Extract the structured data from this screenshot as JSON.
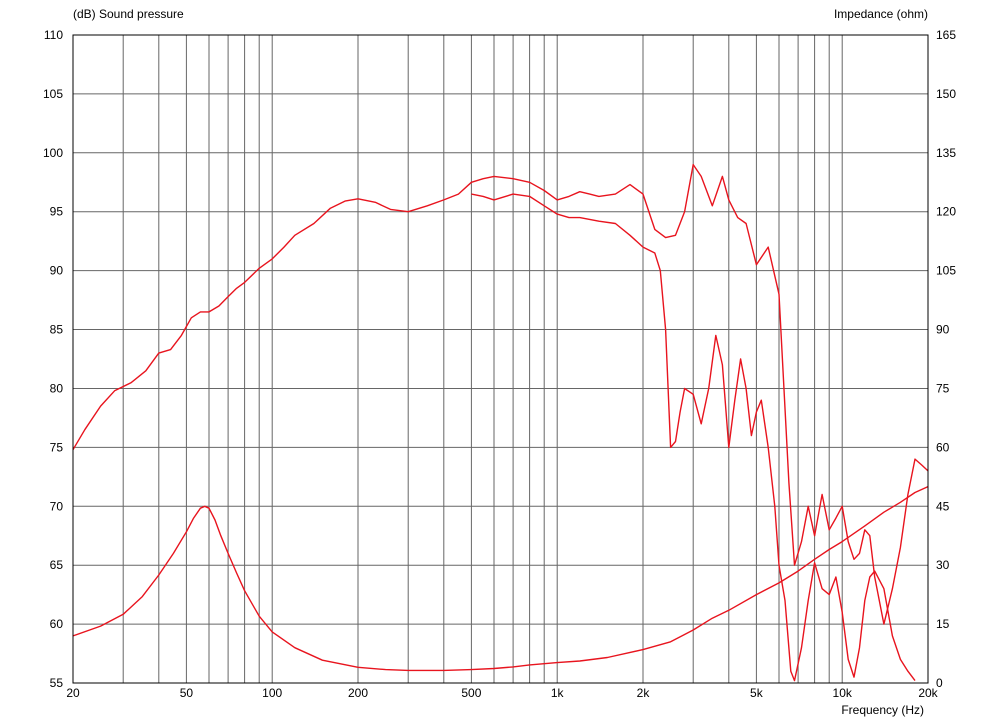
{
  "chart_data": {
    "type": "line",
    "x_scale": "log",
    "xlim": [
      20,
      20000
    ],
    "ylim_left": [
      55,
      110
    ],
    "ylim_right": [
      0,
      165
    ],
    "grid": true,
    "left_axis_title": "(dB)  Sound pressure",
    "right_axis_title": "Impedance  (ohm)",
    "x_axis_title": "Frequency  (Hz)",
    "x_ticks": [
      {
        "value": 20,
        "label": "20"
      },
      {
        "value": 50,
        "label": "50"
      },
      {
        "value": 100,
        "label": "100"
      },
      {
        "value": 200,
        "label": "200"
      },
      {
        "value": 500,
        "label": "500"
      },
      {
        "value": 1000,
        "label": "1k"
      },
      {
        "value": 2000,
        "label": "2k"
      },
      {
        "value": 5000,
        "label": "5k"
      },
      {
        "value": 10000,
        "label": "10k"
      },
      {
        "value": 20000,
        "label": "20k"
      }
    ],
    "left_ticks": [
      {
        "value": 55,
        "label": "55"
      },
      {
        "value": 60,
        "label": "60"
      },
      {
        "value": 65,
        "label": "65"
      },
      {
        "value": 70,
        "label": "70"
      },
      {
        "value": 75,
        "label": "75"
      },
      {
        "value": 80,
        "label": "80"
      },
      {
        "value": 85,
        "label": "85"
      },
      {
        "value": 90,
        "label": "90"
      },
      {
        "value": 95,
        "label": "95"
      },
      {
        "value": 100,
        "label": "100"
      },
      {
        "value": 105,
        "label": "105"
      },
      {
        "value": 110,
        "label": "110"
      }
    ],
    "right_ticks": [
      {
        "value": 0,
        "label": "0"
      },
      {
        "value": 15,
        "label": "15"
      },
      {
        "value": 30,
        "label": "30"
      },
      {
        "value": 45,
        "label": "45"
      },
      {
        "value": 60,
        "label": "60"
      },
      {
        "value": 75,
        "label": "75"
      },
      {
        "value": 90,
        "label": "90"
      },
      {
        "value": 105,
        "label": "105"
      },
      {
        "value": 120,
        "label": "120"
      },
      {
        "value": 135,
        "label": "135"
      },
      {
        "value": 150,
        "label": "150"
      },
      {
        "value": 165,
        "label": "165"
      }
    ],
    "series": [
      {
        "color": "#e8141e",
        "axis": "left",
        "x": [
          20,
          22,
          25,
          28,
          32,
          36,
          40,
          44,
          48,
          52,
          56,
          60,
          65,
          70,
          75,
          80,
          90,
          100,
          110,
          120,
          140,
          160,
          180,
          200,
          230,
          260,
          300,
          350,
          400,
          450,
          500,
          550,
          600,
          700,
          800,
          900,
          1000,
          1100,
          1200,
          1300,
          1400,
          1600,
          1800,
          2000,
          2200,
          2400,
          2600,
          2800,
          3000,
          3200,
          3500,
          3800,
          4000,
          4300,
          4600,
          5000,
          5500,
          6000,
          6500,
          6800,
          7200,
          7600,
          8000,
          8500,
          9000,
          9500,
          10000,
          10500,
          11000,
          11500,
          12000,
          12500,
          13000,
          14000,
          15000,
          16000,
          17000,
          18000,
          19000,
          20000
        ],
        "values": [
          74.8,
          76.5,
          78.5,
          79.8,
          80.5,
          81.5,
          83.0,
          83.3,
          84.5,
          86.0,
          86.5,
          86.5,
          87.0,
          87.8,
          88.5,
          89.0,
          90.2,
          91.0,
          92.0,
          93.0,
          94.0,
          95.3,
          95.9,
          96.1,
          95.8,
          95.2,
          95.0,
          95.5,
          96.0,
          96.5,
          97.5,
          97.8,
          98.0,
          97.8,
          97.5,
          96.8,
          96.0,
          96.3,
          96.7,
          96.5,
          96.3,
          96.5,
          97.3,
          96.5,
          93.5,
          92.8,
          93.0,
          95.0,
          99.0,
          98.0,
          95.5,
          98.0,
          96.0,
          94.5,
          94.0,
          90.5,
          92.0,
          88.0,
          72.0,
          65.0,
          67.0,
          70.0,
          67.5,
          71.0,
          68.0,
          69.0,
          70.0,
          67.0,
          65.5,
          66.0,
          68.0,
          67.5,
          64.0,
          60.0,
          63.0,
          66.5,
          71.0,
          74.0,
          73.5,
          73.0
        ]
      },
      {
        "color": "#e8141e",
        "axis": "left",
        "x": [
          500,
          550,
          600,
          700,
          800,
          900,
          1000,
          1100,
          1200,
          1400,
          1600,
          1800,
          2000,
          2200,
          2300,
          2400,
          2500,
          2600,
          2700,
          2800,
          3000,
          3200,
          3400,
          3600,
          3800,
          4000,
          4200,
          4400,
          4600,
          4800,
          5000,
          5200,
          5500,
          5800,
          6000,
          6300,
          6600,
          6800,
          7200,
          7600,
          8000,
          8500,
          9000,
          9500,
          10000,
          10500,
          11000,
          11500,
          12000,
          12500,
          13000,
          14000,
          15000,
          16000,
          17000,
          18000
        ],
        "values": [
          96.5,
          96.3,
          96.0,
          96.5,
          96.3,
          95.5,
          94.8,
          94.5,
          94.5,
          94.2,
          94.0,
          93.0,
          92.0,
          91.5,
          90.0,
          85.0,
          75.0,
          75.5,
          78.0,
          80.0,
          79.5,
          77.0,
          80.0,
          84.5,
          82.0,
          75.0,
          79.0,
          82.5,
          80.0,
          76.0,
          78.0,
          79.0,
          75.0,
          70.0,
          65.0,
          62.0,
          56.0,
          55.2,
          58.0,
          62.0,
          65.2,
          63.0,
          62.5,
          64.0,
          61.0,
          57.0,
          55.5,
          58.0,
          62.0,
          64.0,
          64.5,
          63.0,
          59.0,
          57.0,
          56.0,
          55.2
        ]
      },
      {
        "color": "#e8141e",
        "axis": "right",
        "x": [
          20,
          25,
          30,
          35,
          40,
          45,
          50,
          53,
          56,
          58,
          60,
          63,
          66,
          70,
          75,
          80,
          90,
          100,
          120,
          150,
          200,
          250,
          300,
          400,
          500,
          600,
          700,
          800,
          1000,
          1200,
          1500,
          2000,
          2500,
          3000,
          3500,
          4000,
          5000,
          6000,
          7000,
          8000,
          9000,
          10000,
          12000,
          14000,
          16000,
          18000,
          20000
        ],
        "values": [
          12.0,
          14.5,
          17.5,
          22.0,
          27.5,
          33.0,
          38.5,
          42.0,
          44.5,
          45.0,
          44.5,
          41.5,
          37.5,
          33.0,
          28.0,
          23.5,
          17.0,
          13.0,
          9.0,
          5.8,
          4.0,
          3.4,
          3.2,
          3.2,
          3.4,
          3.7,
          4.1,
          4.6,
          5.2,
          5.6,
          6.5,
          8.5,
          10.5,
          13.5,
          16.5,
          18.5,
          22.5,
          25.5,
          28.5,
          31.5,
          34.0,
          36.0,
          40.0,
          43.5,
          46.0,
          48.5,
          50.0
        ]
      }
    ]
  }
}
